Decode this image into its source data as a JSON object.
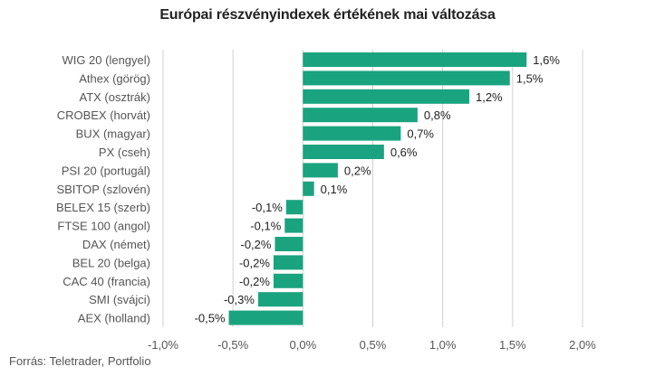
{
  "chart_data": {
    "type": "bar",
    "orientation": "horizontal",
    "title": "Európai részvényindexek értékének mai változása",
    "source": "Forrás: Teletrader, Portfolio",
    "categories": [
      "WIG 20 (lengyel)",
      "Athex (görög)",
      "ATX (osztrák)",
      "CROBEX (horvát)",
      "BUX (magyar)",
      "PX (cseh)",
      "PSI 20 (portugál)",
      "SBITOP (szlovén)",
      "BELEX 15 (szerb)",
      "FTSE 100 (angol)",
      "DAX (német)",
      "BEL 20 (belga)",
      "CAC 40 (francia)",
      "SMI (svájci)",
      "AEX (holland)"
    ],
    "values": [
      1.6,
      1.48,
      1.19,
      0.82,
      0.7,
      0.58,
      0.25,
      0.08,
      -0.12,
      -0.13,
      -0.2,
      -0.21,
      -0.21,
      -0.32,
      -0.53
    ],
    "labels": [
      "1,6%",
      "1,5%",
      "1,2%",
      "0,8%",
      "0,7%",
      "0,6%",
      "0,2%",
      "0,1%",
      "-0,1%",
      "-0,1%",
      "-0,2%",
      "-0,2%",
      "-0,2%",
      "-0,3%",
      "-0,5%"
    ],
    "xlim": [
      -1.0,
      2.0
    ],
    "xticks": [
      -1.0,
      -0.5,
      0.0,
      0.5,
      1.0,
      1.5,
      2.0
    ],
    "xtick_labels": [
      "-1,0%",
      "-0,5%",
      "0,0%",
      "0,5%",
      "1,0%",
      "1,5%",
      "2,0%"
    ],
    "grid": true,
    "bar_color": "#1aa37f",
    "grid_color": "#d0d0d0",
    "xlabel": "",
    "ylabel": ""
  }
}
